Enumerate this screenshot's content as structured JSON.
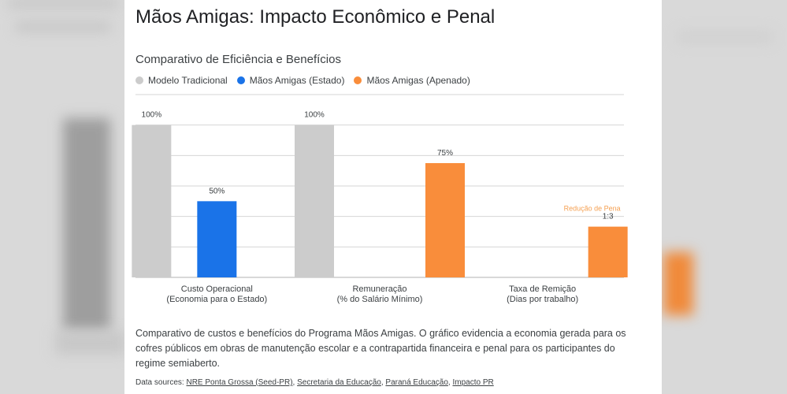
{
  "page": {
    "title": "Mãos Amigas: Impacto Econômico e Penal",
    "description": "Comparativo de custos e benefícios do Programa Mãos Amigas. O gráfico evidencia a economia gerada para os cofres públicos em obras de manutenção escolar e a contrapartida financeira e penal para os participantes do regime semiaberto.",
    "sources_label": "Data sources:",
    "sources": [
      "NRE Ponta Grossa (Seed-PR)",
      "Secretaria da Educação",
      "Paraná Educação",
      "Impacto PR"
    ]
  },
  "chart_data": {
    "type": "bar",
    "title": "Comparativo de Eficiência e Benefícios",
    "legend_position": "top-left",
    "grid": true,
    "ylim": [
      0,
      120
    ],
    "categories": [
      [
        "Custo Operacional",
        "(Economia para o Estado)"
      ],
      [
        "Remuneração",
        "(% do Salário Mínimo)"
      ],
      [
        "Taxa de Remição",
        "(Dias por trabalho)"
      ]
    ],
    "series": [
      {
        "name": "Modelo Tradicional",
        "color": "#cccccc",
        "values": [
          100,
          100,
          null
        ],
        "labels": [
          "100%",
          "100%",
          ""
        ]
      },
      {
        "name": "Mãos Amigas (Estado)",
        "color": "#1a73e8",
        "values": [
          50,
          null,
          null
        ],
        "labels": [
          "50%",
          "",
          ""
        ]
      },
      {
        "name": "Mãos Amigas (Apenado)",
        "color": "#f98d3b",
        "values": [
          null,
          75,
          33.3
        ],
        "labels": [
          "",
          "75%",
          "1:3"
        ]
      }
    ],
    "annotations": [
      {
        "category": 2,
        "series": 2,
        "text": "Redução de Pena",
        "color": "#f5a052"
      }
    ]
  }
}
